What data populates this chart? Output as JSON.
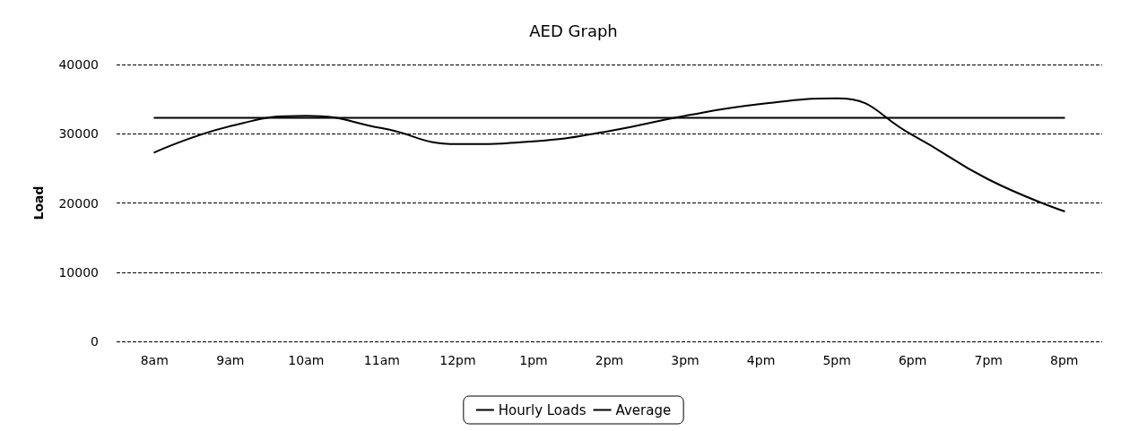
{
  "chart_data": {
    "type": "line",
    "title": "AED Graph",
    "ylabel": "Load",
    "categories": [
      "8am",
      "9am",
      "10am",
      "11am",
      "12pm",
      "1pm",
      "2pm",
      "3pm",
      "4pm",
      "5pm",
      "6pm",
      "7pm",
      "8pm"
    ],
    "series": [
      {
        "name": "Hourly Loads",
        "color": "#000000",
        "values": [
          27300,
          31100,
          32600,
          30800,
          28500,
          28900,
          30400,
          32600,
          34300,
          35100,
          29800,
          23400,
          18800
        ]
      },
      {
        "name": "Average",
        "color": "#000000",
        "values": [
          32300,
          32300,
          32300,
          32300,
          32300,
          32300,
          32300,
          32300,
          32300,
          32300,
          32300,
          32300,
          32300
        ]
      }
    ],
    "ylim": [
      0,
      40000
    ],
    "yticks": [
      0,
      10000,
      20000,
      30000,
      40000
    ],
    "grid": "y",
    "legend": "bottom",
    "marker": "none",
    "line_style": "solid"
  }
}
